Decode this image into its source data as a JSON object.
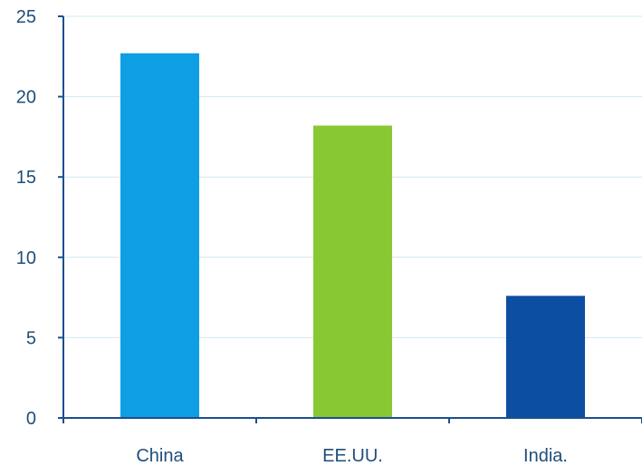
{
  "chart_data": {
    "type": "bar",
    "title": "",
    "xlabel": "",
    "ylabel": "",
    "categories": [
      "China",
      "EE.UU.",
      "India."
    ],
    "values": [
      22.7,
      18.2,
      7.6
    ],
    "colors": [
      "#0d9ee3",
      "#88c832",
      "#0b4ea2"
    ],
    "ylim": [
      0,
      25
    ],
    "yticks": [
      0,
      5,
      10,
      15,
      20,
      25
    ],
    "grid": true,
    "legend": "none"
  }
}
